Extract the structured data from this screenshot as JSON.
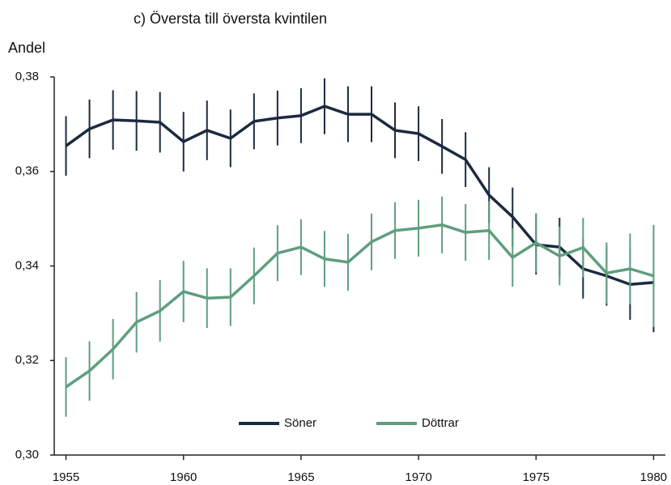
{
  "chart_data": {
    "type": "line",
    "title": "c)    Översta till översta kvintilen",
    "y_label": "Andel",
    "x": [
      1955,
      1956,
      1957,
      1958,
      1959,
      1960,
      1961,
      1962,
      1963,
      1964,
      1965,
      1966,
      1967,
      1968,
      1969,
      1970,
      1971,
      1972,
      1973,
      1974,
      1975,
      1976,
      1977,
      1978,
      1979,
      1980
    ],
    "series": [
      {
        "name": "Söner",
        "color": "#1c2a3f",
        "values": [
          0.3654,
          0.369,
          0.3709,
          0.3707,
          0.3704,
          0.3663,
          0.3687,
          0.367,
          0.3706,
          0.3713,
          0.3718,
          0.3738,
          0.3721,
          0.3721,
          0.3687,
          0.368,
          0.3653,
          0.3625,
          0.355,
          0.3504,
          0.3445,
          0.344,
          0.3394,
          0.3379,
          0.3361,
          0.3365
        ],
        "errors": [
          0.0063,
          0.0062,
          0.0063,
          0.0063,
          0.0064,
          0.0063,
          0.0063,
          0.0061,
          0.0059,
          0.0058,
          0.0058,
          0.0059,
          0.0059,
          0.0059,
          0.0059,
          0.0058,
          0.0058,
          0.0058,
          0.0059,
          0.0062,
          0.0063,
          0.0062,
          0.0063,
          0.0063,
          0.0075,
          0.0105
        ]
      },
      {
        "name": "Döttrar",
        "color": "#5e9e7e",
        "values": [
          0.3144,
          0.3178,
          0.3224,
          0.3281,
          0.3305,
          0.3346,
          0.3332,
          0.3334,
          0.3379,
          0.3427,
          0.344,
          0.3415,
          0.3408,
          0.3451,
          0.3475,
          0.348,
          0.3487,
          0.3471,
          0.3475,
          0.3418,
          0.3449,
          0.3421,
          0.3439,
          0.3385,
          0.3394,
          0.3379
        ],
        "errors": [
          0.0063,
          0.0063,
          0.0064,
          0.0064,
          0.0065,
          0.0065,
          0.0063,
          0.0061,
          0.006,
          0.0059,
          0.0059,
          0.0059,
          0.006,
          0.006,
          0.006,
          0.006,
          0.006,
          0.006,
          0.0062,
          0.0062,
          0.0063,
          0.0062,
          0.0063,
          0.0065,
          0.0075,
          0.0108
        ]
      }
    ],
    "xlim": [
      1954.5,
      1980.5
    ],
    "xticks": [
      1955,
      1960,
      1965,
      1970,
      1975,
      1980
    ],
    "ylim": [
      0.3,
      0.38
    ],
    "yticks": [
      {
        "value": 0.3,
        "label": "0,30"
      },
      {
        "value": 0.32,
        "label": "0,32"
      },
      {
        "value": 0.34,
        "label": "0,34"
      },
      {
        "value": 0.36,
        "label": "0,36"
      },
      {
        "value": 0.38,
        "label": "0,38"
      }
    ],
    "legend": "bottom"
  }
}
